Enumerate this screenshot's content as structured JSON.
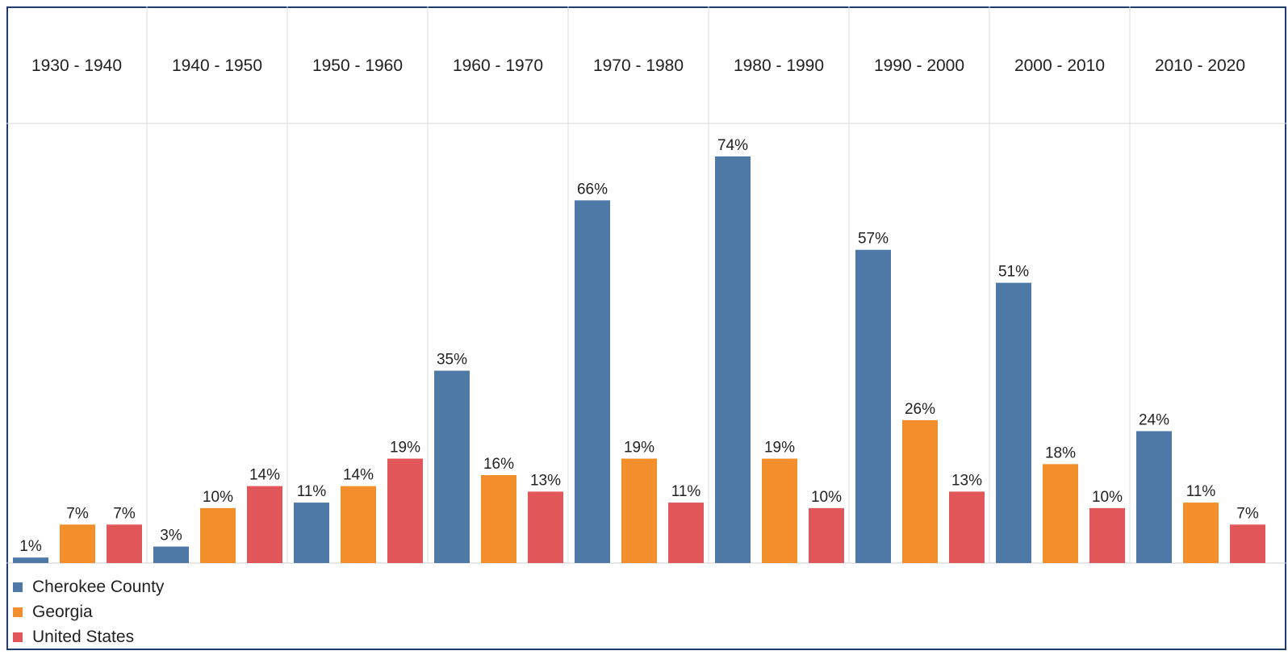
{
  "chart_data": {
    "type": "bar",
    "categories": [
      "1930 - 1940",
      "1940 - 1950",
      "1950 - 1960",
      "1960 - 1970",
      "1970 - 1980",
      "1980 - 1990",
      "1990 - 2000",
      "2000 - 2010",
      "2010 - 2020"
    ],
    "series": [
      {
        "name": "Cherokee County",
        "values": [
          1,
          3,
          11,
          35,
          66,
          74,
          57,
          51,
          24
        ],
        "labels": [
          "1%",
          "3%",
          "11%",
          "35%",
          "66%",
          "74%",
          "57%",
          "51%",
          "24%"
        ],
        "color": "#4e79a7"
      },
      {
        "name": "Georgia",
        "values": [
          7,
          10,
          14,
          16,
          19,
          19,
          26,
          18,
          11
        ],
        "labels": [
          "7%",
          "10%",
          "14%",
          "16%",
          "19%",
          "19%",
          "26%",
          "18%",
          "11%"
        ],
        "color": "#f28e2b"
      },
      {
        "name": "United States",
        "values": [
          7,
          14,
          19,
          13,
          11,
          10,
          13,
          10,
          7
        ],
        "labels": [
          "7%",
          "14%",
          "19%",
          "13%",
          "11%",
          "10%",
          "13%",
          "10%",
          "7%"
        ],
        "color": "#e15759"
      }
    ],
    "title": "",
    "xlabel": "",
    "ylabel": "",
    "ylim": [
      0,
      80
    ],
    "grid": "vertical separators between categories",
    "legend": "bottom-left"
  }
}
